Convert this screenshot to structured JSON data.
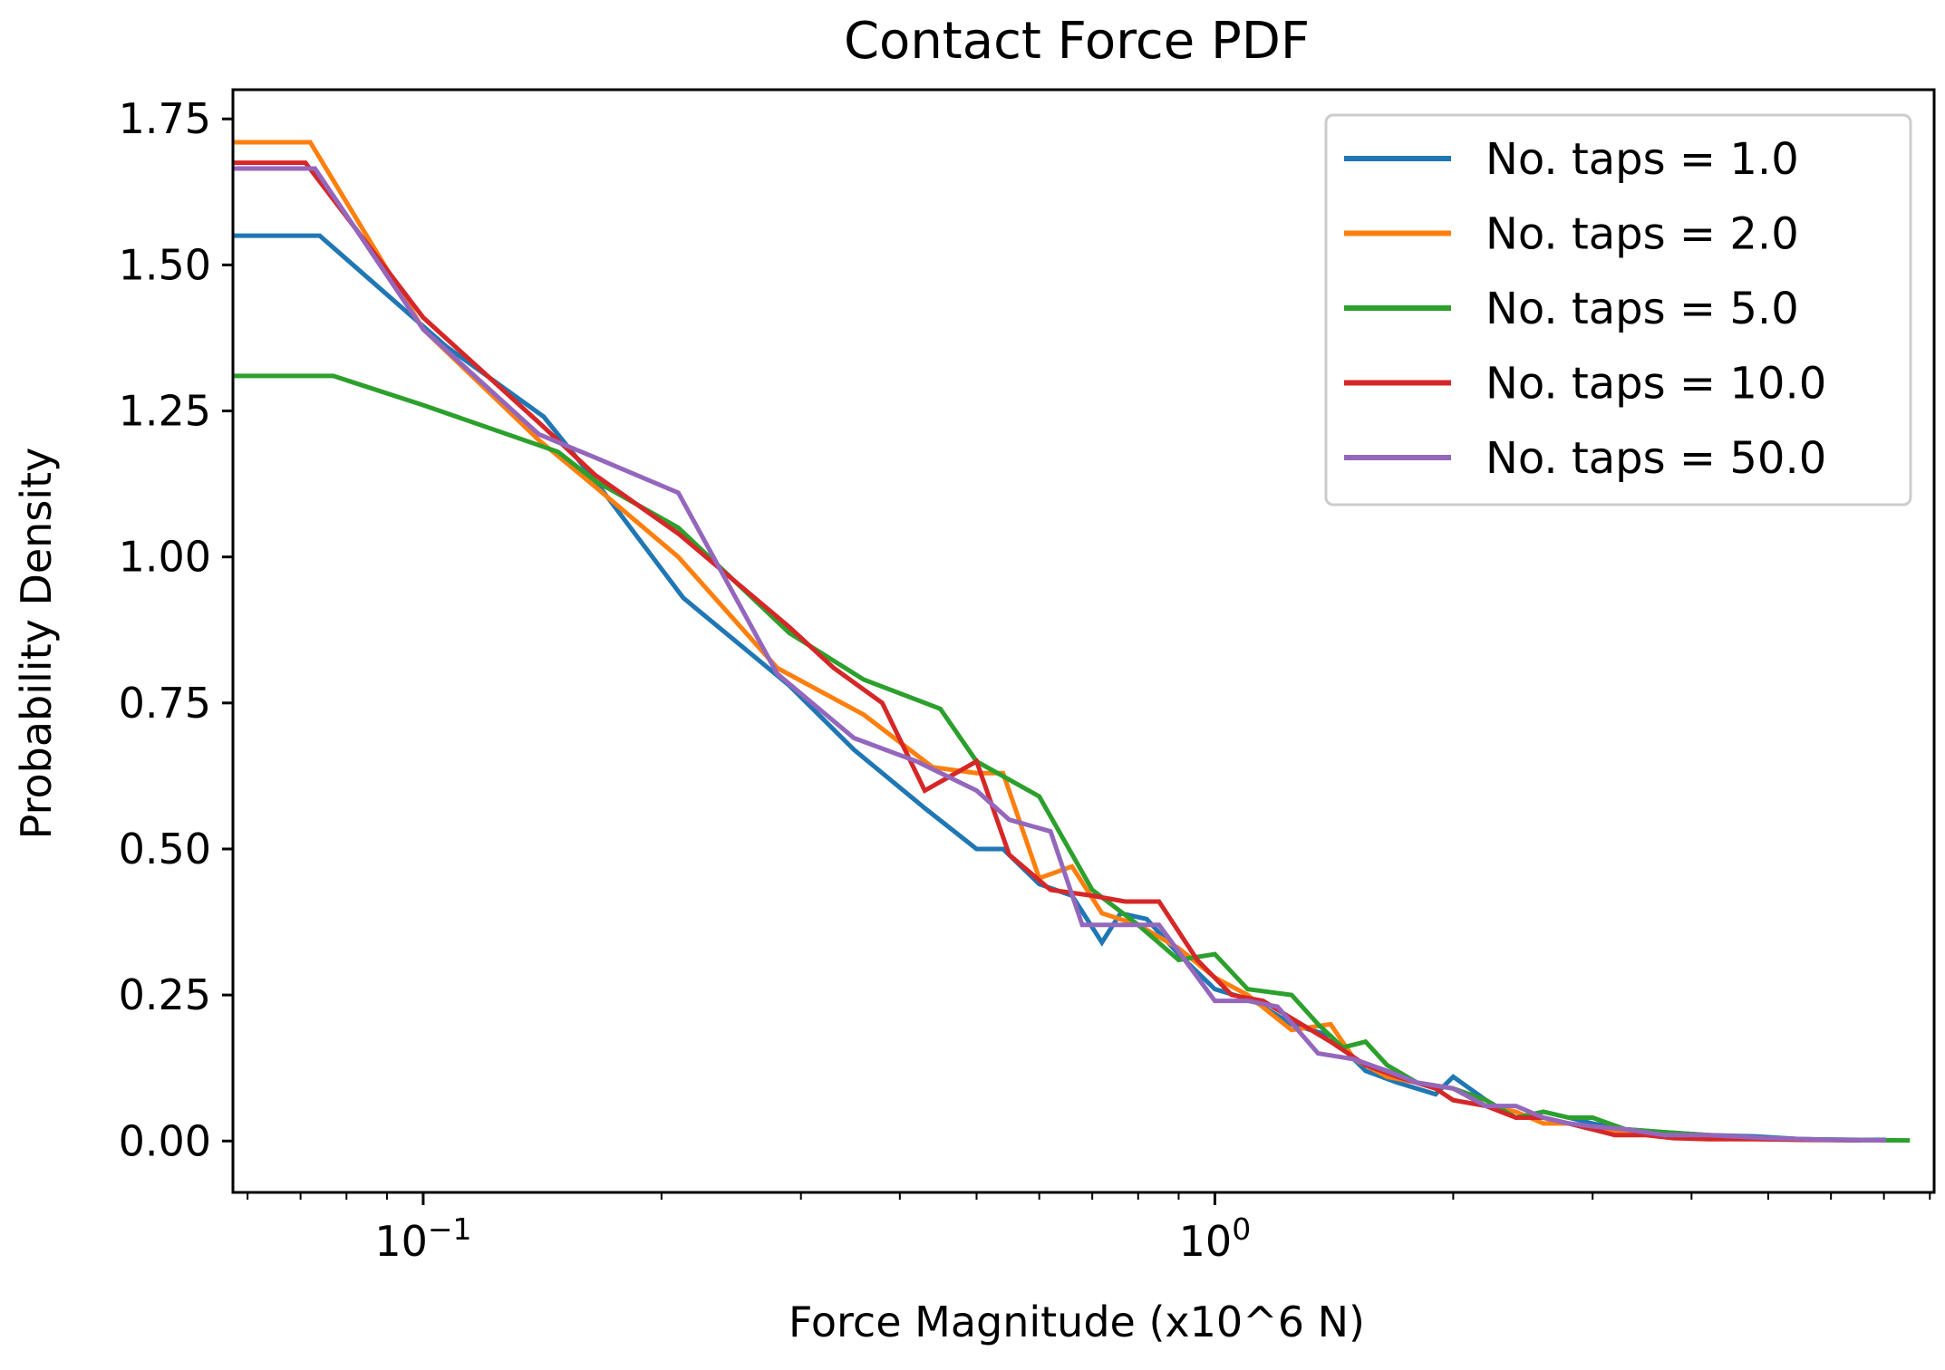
{
  "chart_data": {
    "type": "line",
    "title": "Contact Force PDF",
    "xlabel": "Force Magnitude (x10^6 N)",
    "ylabel": "Probability Density",
    "xscale": "log",
    "xlim": [
      0.0575,
      8.1
    ],
    "ylim": [
      -0.088,
      1.8
    ],
    "xticks": [
      {
        "value": 0.1,
        "base": "10",
        "exp": "−1"
      },
      {
        "value": 1.0,
        "base": "10",
        "exp": "0"
      }
    ],
    "yticks": [
      {
        "value": 0.0,
        "label": "0.00"
      },
      {
        "value": 0.25,
        "label": "0.25"
      },
      {
        "value": 0.5,
        "label": "0.50"
      },
      {
        "value": 0.75,
        "label": "0.75"
      },
      {
        "value": 1.0,
        "label": "1.00"
      },
      {
        "value": 1.25,
        "label": "1.25"
      },
      {
        "value": 1.5,
        "label": "1.50"
      },
      {
        "value": 1.75,
        "label": "1.75"
      }
    ],
    "grid": false,
    "legend_position": "top-right",
    "series": [
      {
        "name": "No. taps = 1.0",
        "color": "#1f77b4",
        "x": [
          0.0575,
          0.074,
          0.107,
          0.142,
          0.165,
          0.213,
          0.29,
          0.35,
          0.43,
          0.5,
          0.54,
          0.6,
          0.66,
          0.72,
          0.76,
          0.82,
          0.9,
          1.0,
          1.12,
          1.25,
          1.4,
          1.55,
          1.7,
          1.9,
          2.0,
          2.2,
          2.4,
          2.6,
          2.8,
          3.0,
          3.3,
          3.7,
          4.2,
          4.8,
          5.5,
          6.5,
          7.0
        ],
        "y": [
          1.55,
          1.55,
          1.36,
          1.24,
          1.13,
          0.93,
          0.78,
          0.67,
          0.57,
          0.5,
          0.5,
          0.44,
          0.42,
          0.34,
          0.39,
          0.38,
          0.32,
          0.26,
          0.24,
          0.2,
          0.18,
          0.12,
          0.1,
          0.08,
          0.11,
          0.07,
          0.04,
          0.05,
          0.04,
          0.03,
          0.02,
          0.015,
          0.01,
          0.008,
          0.003,
          0.002,
          0.002
        ]
      },
      {
        "name": "No. taps = 2.0",
        "color": "#ff7f0e",
        "x": [
          0.0575,
          0.072,
          0.1,
          0.14,
          0.165,
          0.21,
          0.28,
          0.36,
          0.44,
          0.5,
          0.54,
          0.6,
          0.66,
          0.72,
          0.8,
          0.9,
          1.0,
          1.1,
          1.25,
          1.4,
          1.5,
          1.65,
          1.8,
          2.0,
          2.2,
          2.4,
          2.6,
          2.8,
          3.0,
          3.4,
          3.8,
          4.3,
          5.0,
          6.0,
          7.0
        ],
        "y": [
          1.71,
          1.71,
          1.39,
          1.2,
          1.12,
          1.0,
          0.81,
          0.73,
          0.64,
          0.63,
          0.63,
          0.45,
          0.47,
          0.39,
          0.37,
          0.33,
          0.28,
          0.25,
          0.19,
          0.2,
          0.14,
          0.11,
          0.1,
          0.09,
          0.06,
          0.05,
          0.03,
          0.03,
          0.02,
          0.015,
          0.01,
          0.005,
          0.003,
          0.002,
          0.001
        ]
      },
      {
        "name": "No. taps = 5.0",
        "color": "#2ca02c",
        "x": [
          0.0575,
          0.077,
          0.1,
          0.148,
          0.165,
          0.21,
          0.29,
          0.36,
          0.45,
          0.5,
          0.6,
          0.7,
          0.8,
          0.9,
          1.0,
          1.1,
          1.25,
          1.35,
          1.45,
          1.55,
          1.65,
          1.8,
          2.0,
          2.2,
          2.4,
          2.6,
          2.8,
          3.0,
          3.3,
          3.7,
          4.2,
          5.0,
          6.0,
          7.5
        ],
        "y": [
          1.31,
          1.31,
          1.26,
          1.18,
          1.13,
          1.05,
          0.87,
          0.79,
          0.74,
          0.65,
          0.59,
          0.43,
          0.37,
          0.31,
          0.32,
          0.26,
          0.25,
          0.2,
          0.16,
          0.17,
          0.13,
          0.1,
          0.09,
          0.07,
          0.04,
          0.05,
          0.04,
          0.04,
          0.02,
          0.015,
          0.01,
          0.005,
          0.002,
          0.001
        ]
      },
      {
        "name": "No. taps = 10.0",
        "color": "#d62728",
        "x": [
          0.0575,
          0.071,
          0.1,
          0.14,
          0.165,
          0.21,
          0.29,
          0.33,
          0.38,
          0.43,
          0.5,
          0.55,
          0.62,
          0.7,
          0.77,
          0.85,
          0.95,
          1.05,
          1.15,
          1.25,
          1.4,
          1.55,
          1.7,
          1.9,
          2.0,
          2.2,
          2.4,
          2.6,
          2.8,
          3.0,
          3.2,
          3.5,
          3.8,
          4.2,
          4.8,
          5.5,
          6.5
        ],
        "y": [
          1.675,
          1.675,
          1.41,
          1.23,
          1.14,
          1.04,
          0.88,
          0.81,
          0.75,
          0.6,
          0.65,
          0.49,
          0.43,
          0.42,
          0.41,
          0.41,
          0.31,
          0.25,
          0.24,
          0.21,
          0.17,
          0.13,
          0.11,
          0.09,
          0.07,
          0.06,
          0.04,
          0.04,
          0.03,
          0.02,
          0.01,
          0.01,
          0.005,
          0.003,
          0.003,
          0.002,
          0.001
        ]
      },
      {
        "name": "No. taps = 50.0",
        "color": "#9467bd",
        "x": [
          0.0575,
          0.073,
          0.1,
          0.14,
          0.165,
          0.21,
          0.28,
          0.35,
          0.42,
          0.5,
          0.55,
          0.62,
          0.68,
          0.75,
          0.85,
          1.0,
          1.1,
          1.2,
          1.35,
          1.5,
          1.65,
          1.8,
          2.0,
          2.2,
          2.4,
          2.6,
          2.8,
          3.0,
          3.3,
          3.7,
          4.2,
          5.0,
          6.0,
          7.0
        ],
        "y": [
          1.665,
          1.665,
          1.39,
          1.21,
          1.17,
          1.11,
          0.8,
          0.69,
          0.65,
          0.6,
          0.55,
          0.53,
          0.37,
          0.37,
          0.37,
          0.24,
          0.24,
          0.23,
          0.15,
          0.14,
          0.12,
          0.1,
          0.09,
          0.06,
          0.06,
          0.04,
          0.03,
          0.025,
          0.02,
          0.01,
          0.01,
          0.005,
          0.002,
          0.001
        ]
      }
    ]
  }
}
